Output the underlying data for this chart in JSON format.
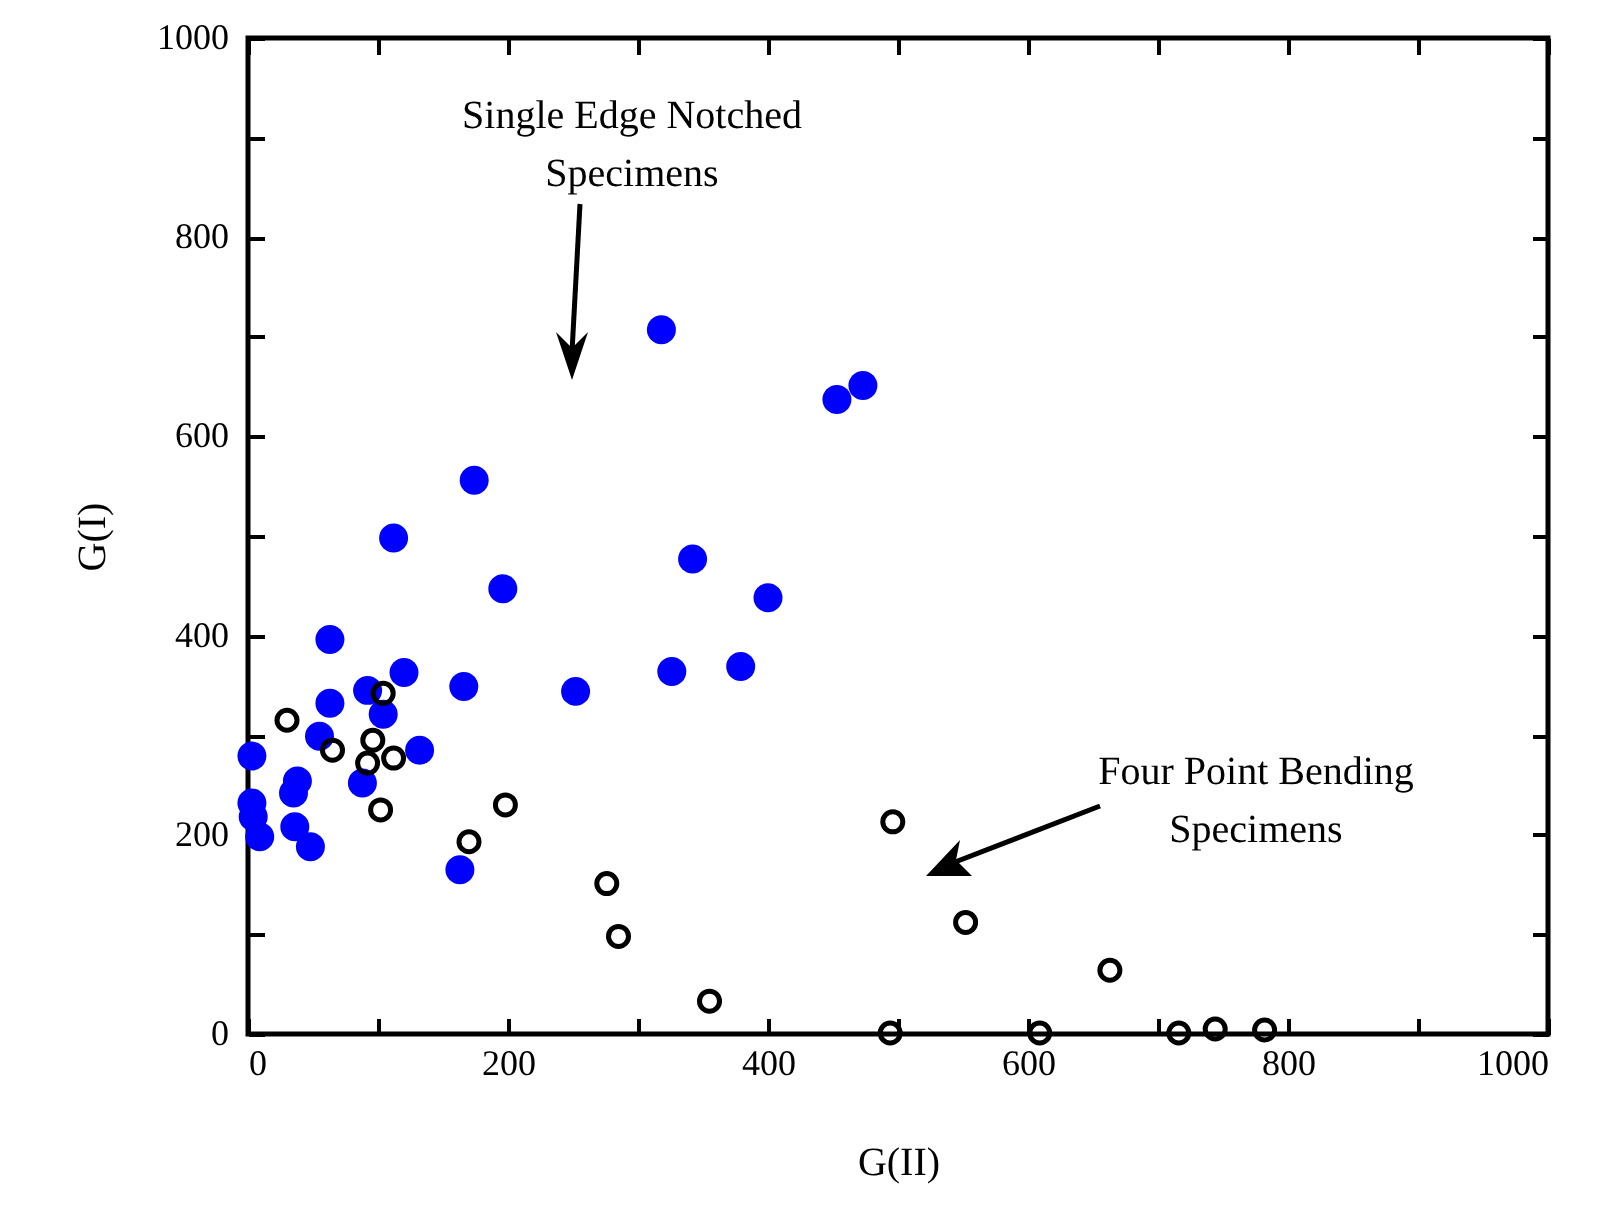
{
  "chart_data": {
    "type": "scatter",
    "xlabel": "G(II)",
    "ylabel": "G(I)",
    "xlim": [
      0,
      1000
    ],
    "ylim": [
      0,
      1000
    ],
    "xticks": [
      0,
      {
        "value": 100,
        "label": null
      },
      200,
      {
        "value": 300,
        "label": null
      },
      400,
      {
        "value": 500,
        "label": null
      },
      600,
      {
        "value": 700,
        "label": null
      },
      800,
      {
        "value": 900,
        "label": null
      },
      1000
    ],
    "yticks": [
      0,
      {
        "value": 100,
        "label": null
      },
      200,
      {
        "value": 300,
        "label": null
      },
      400,
      {
        "value": 500,
        "label": null
      },
      600,
      {
        "value": 700,
        "label": null
      },
      800,
      {
        "value": 900,
        "label": null
      },
      1000
    ],
    "grid": false,
    "marker": "circle",
    "annotations": [
      "Single Edge Notched\nSpecimens",
      "Four Point Bending\nSpecimens"
    ],
    "series": [
      {
        "color": "#0000ff",
        "x": [
          318,
          453,
          473,
          174,
          112,
          196,
          342,
          400,
          63,
          120,
          166,
          252,
          326,
          379,
          92,
          63,
          104,
          55,
          132,
          3,
          88,
          38,
          35,
          3,
          4,
          9,
          36,
          48,
          163
        ],
        "values": [
          707,
          637,
          651,
          556,
          498,
          447,
          477,
          438,
          396,
          363,
          349,
          344,
          364,
          369,
          345,
          332,
          321,
          299,
          285,
          279,
          252,
          254,
          242,
          232,
          218,
          198,
          208,
          188,
          165
        ]
      },
      {
        "color": "#000000",
        "x": [
          30,
          65,
          104,
          96,
          112,
          92,
          102,
          198,
          170,
          276,
          285,
          355,
          496,
          552,
          663,
          494,
          609,
          716,
          744,
          782
        ],
        "values": [
          315,
          285,
          342,
          295,
          277,
          272,
          225,
          230,
          193,
          151,
          98,
          33,
          213,
          112,
          64,
          1,
          1,
          1,
          5,
          4
        ]
      }
    ]
  }
}
